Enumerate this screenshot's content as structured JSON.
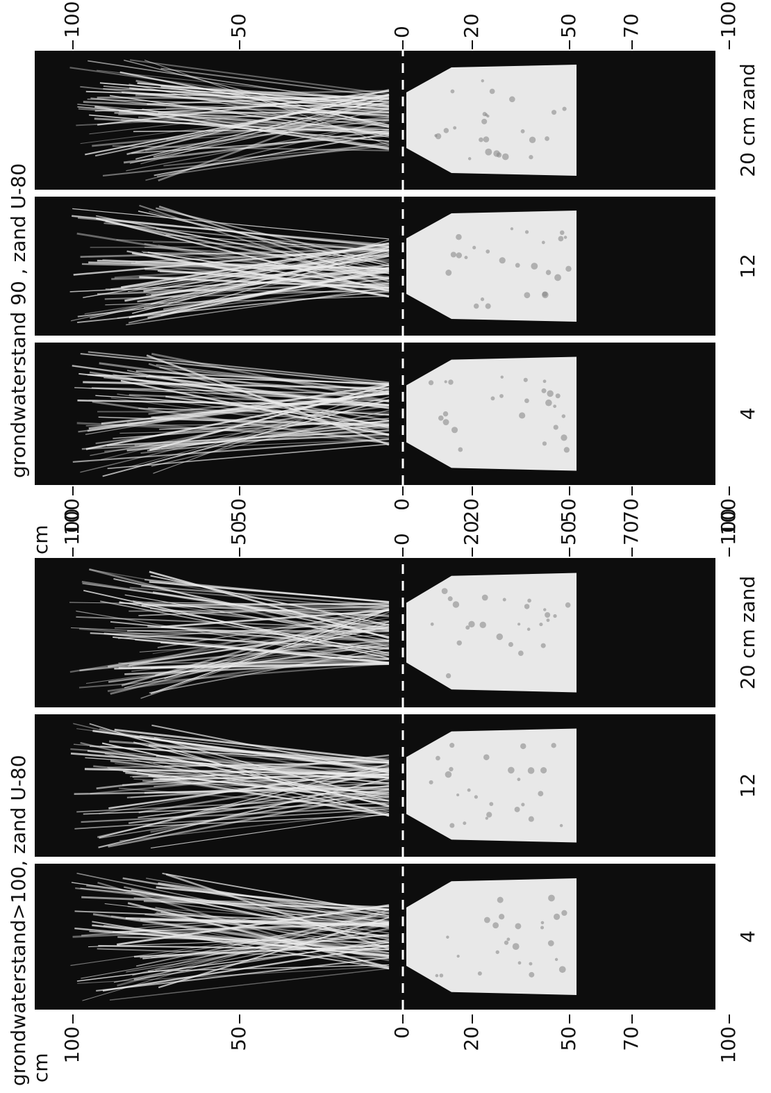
{
  "groups": [
    {
      "title": "grondwaterstand>100, zand U-80",
      "unit": "cm",
      "left_axis": [
        100,
        50,
        0,
        20,
        50,
        70,
        100
      ],
      "right_axis": [
        100,
        50,
        0,
        20,
        50,
        70,
        100
      ],
      "panels": [
        "4",
        "12",
        "20 cm zand"
      ]
    },
    {
      "title": "grondwaterstand 90 ,  zand U-80",
      "unit": "cm",
      "left_axis": [
        100,
        50,
        0,
        20,
        50,
        70,
        100
      ],
      "right_axis": [
        100,
        50,
        0,
        20,
        50,
        70,
        100
      ],
      "panels": [
        "4",
        "12",
        "20 cm zand"
      ]
    }
  ]
}
